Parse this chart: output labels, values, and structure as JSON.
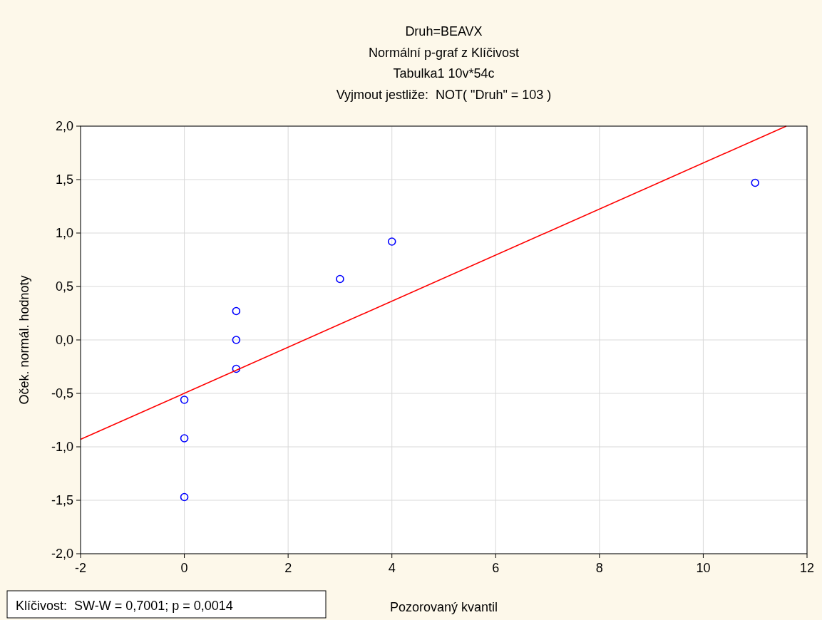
{
  "chart_data": {
    "type": "scatter",
    "title": "Druh=BEAVX",
    "subtitle": "Normální p-graf z Klíčivost\nTabulka1 10v*54c\nVyjmout jestliže:  NOT( \"Druh\" = 103 )",
    "xlabel": "Pozorovaný kvantil",
    "ylabel": "Oček. normál. hodnoty",
    "series": [
      {
        "color": "#0000ff",
        "marker": "circle",
        "x": [
          0,
          0,
          0,
          1,
          1,
          1,
          3,
          4,
          11
        ],
        "values": [
          -1.47,
          -0.92,
          -0.56,
          -0.27,
          0,
          0.27,
          0.57,
          0.92,
          1.47
        ]
      },
      {
        "type": "line",
        "color": "#ff0000",
        "x": [
          -2,
          11.6
        ],
        "values": [
          -0.93,
          2.0
        ]
      }
    ],
    "xlim": [
      -2,
      12
    ],
    "xticks": [
      -2,
      0,
      2,
      4,
      6,
      8,
      10,
      12
    ],
    "ylim": [
      -2,
      2
    ],
    "yticks": [
      {
        "value": -2,
        "label": "-2,0"
      },
      {
        "value": -1.5,
        "label": "-1,5"
      },
      {
        "value": -1,
        "label": "-1,0"
      },
      {
        "value": -0.5,
        "label": "-0,5"
      },
      {
        "value": 0,
        "label": "0,0"
      },
      {
        "value": 0.5,
        "label": "0,5"
      },
      {
        "value": 1,
        "label": "1,0"
      },
      {
        "value": 1.5,
        "label": "1,5"
      },
      {
        "value": 2,
        "label": "2,0"
      }
    ],
    "grid": true,
    "annotations": [
      "Klíčivost:  SW-W = 0,7001; p = 0,0014"
    ]
  }
}
